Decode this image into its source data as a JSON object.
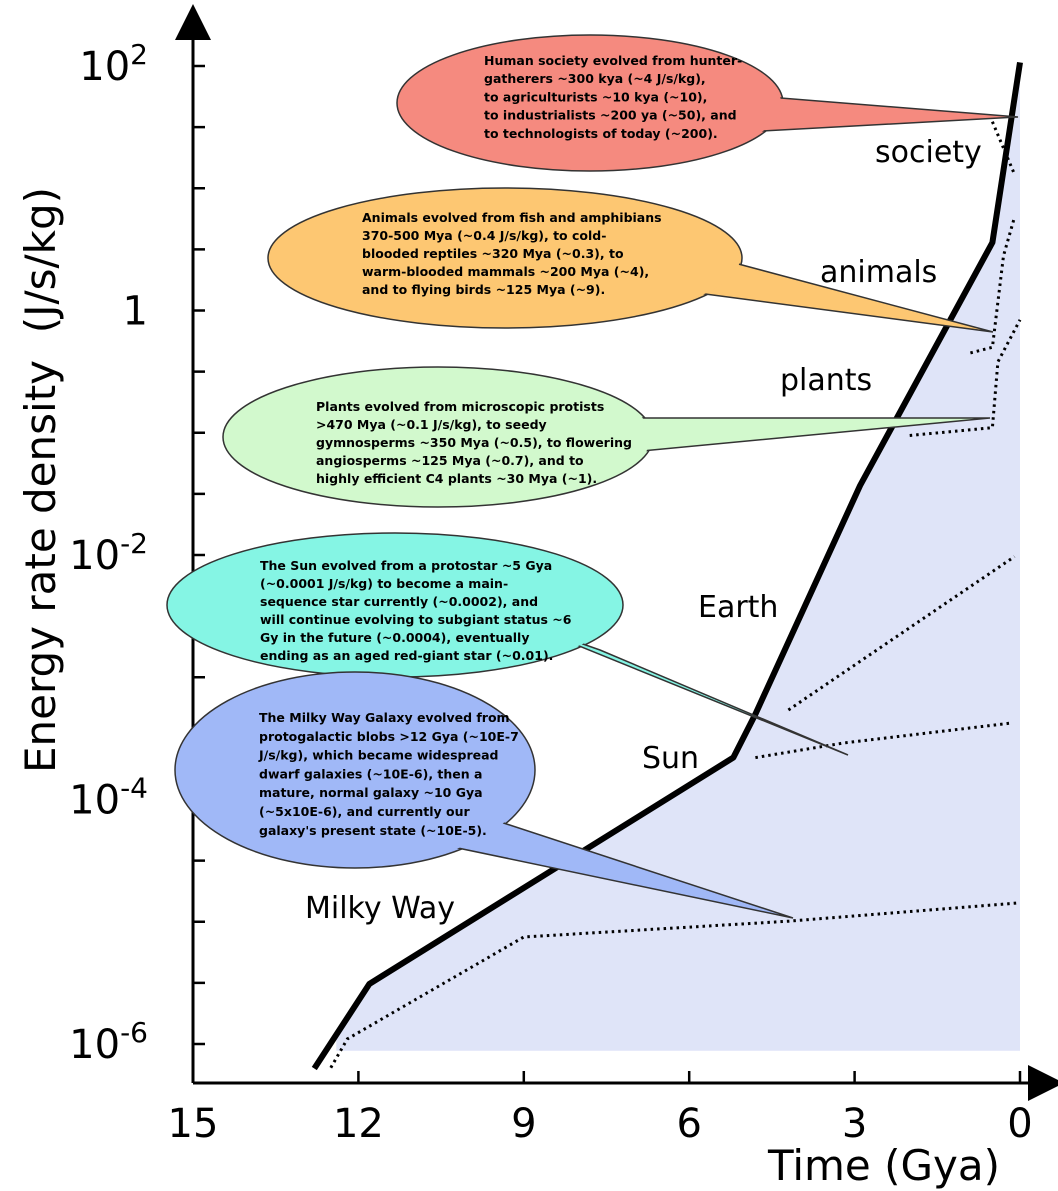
{
  "chart_data": {
    "type": "line",
    "xlabel": "Time (Gya)",
    "ylabel": "Energy rate density  (J/s/kg)",
    "x_scale": "linear, reversed",
    "y_scale": "log",
    "xlim": [
      15,
      0
    ],
    "ylim": [
      1e-06,
      100
    ],
    "x_ticks": [
      "15",
      "12",
      "9",
      "6",
      "3",
      "0"
    ],
    "y_ticks": [
      {
        "base": "10",
        "exp": "2",
        "value": 100
      },
      {
        "base": "1",
        "exp": "",
        "value": 1
      },
      {
        "base": "10",
        "exp": "-2",
        "value": 0.01
      },
      {
        "base": "10",
        "exp": "-4",
        "value": 0.0001
      },
      {
        "base": "10",
        "exp": "-6",
        "value": 1e-06
      }
    ],
    "main_curve": {
      "points": [
        [
          12.8,
          6.3e-07
        ],
        [
          11.8,
          3.1e-06
        ],
        [
          5.2,
          0.00022
        ],
        [
          4.8,
          0.0005
        ],
        [
          2.9,
          0.037
        ],
        [
          0.5,
          3.6
        ],
        [
          0.0,
          107
        ]
      ]
    },
    "branch_tracks": [
      {
        "points": [
          [
            12.5,
            6.4e-07
          ],
          [
            12.2,
            1.1e-06
          ],
          [
            9.0,
            7.5e-06
          ],
          [
            4.2,
            1.01e-05
          ],
          [
            0.0,
            1.43e-05
          ]
        ]
      },
      {
        "points": [
          [
            4.8,
            0.00022
          ],
          [
            3.2,
            0.00029
          ],
          [
            0.2,
            0.00042
          ]
        ]
      },
      {
        "points": [
          [
            4.2,
            0.00054
          ],
          [
            0.1,
            0.0097
          ]
        ]
      },
      {
        "points": [
          [
            2.0,
            0.095
          ],
          [
            0.5,
            0.11
          ],
          [
            0.4,
            0.38
          ],
          [
            0.0,
            0.84
          ]
        ]
      },
      {
        "points": [
          [
            0.9,
            0.45
          ],
          [
            0.5,
            0.5
          ],
          [
            0.3,
            2.8
          ],
          [
            0.1,
            5.8
          ]
        ]
      },
      {
        "points": [
          [
            0.5,
            35
          ],
          [
            0.1,
            13
          ]
        ]
      }
    ],
    "labels": [
      {
        "text": "society"
      },
      {
        "text": "animals"
      },
      {
        "text": "plants"
      },
      {
        "text": "Earth"
      },
      {
        "text": "Sun"
      },
      {
        "text": "Milky Way"
      }
    ],
    "annotations": [
      {
        "color": "#f58a7f",
        "lines": [
          "Human society evolved from hunter-",
          "gatherers ~300 kya (~4 J/s/kg),",
          "to agriculturists ~10 kya (~10),",
          "to industrialists ~200 ya (~50), and",
          "to technologists of today (~200)."
        ]
      },
      {
        "color": "#fdc772",
        "lines": [
          "Animals evolved from fish and amphibians",
          "370-500 Mya (~0.4 J/s/kg), to cold-",
          "blooded reptiles ~320 Mya (~0.3), to",
          "warm-blooded mammals ~200 Mya (~4),",
          "and to flying birds ~125 Mya (~9)."
        ]
      },
      {
        "color": "#d2f9cd",
        "lines": [
          "Plants evolved from microscopic protists",
          ">470 Mya (~0.1 J/s/kg), to seedy",
          "gymnosperms ~350 Mya (~0.5), to flowering",
          "angiosperms ~125 Mya (~0.7), and to",
          "highly efficient C4 plants ~30 Mya (~1)."
        ]
      },
      {
        "color": "#85f5e4",
        "lines": [
          "The Sun evolved from a protostar ~5 Gya",
          "(~0.0001 J/s/kg) to become a main-",
          "sequence star currently (~0.0002), and",
          "will continue evolving to subgiant status ~6",
          "Gy in the future (~0.0004), eventually",
          "ending as an aged red-giant star (~0.01)."
        ]
      },
      {
        "color": "#a0b8f7",
        "lines": [
          "The Milky Way Galaxy evolved from",
          "protogalactic blobs >12 Gya (~10E-7",
          "J/s/kg), which became widespread",
          "dwarf galaxies (~10E-6), then a",
          "mature, normal galaxy ~10 Gya",
          "(~5x10E-6), and currently our",
          "galaxy's present state (~10E-5)."
        ]
      }
    ],
    "colors": {
      "shaded_region": "#dfe4f8",
      "main_curve": "#000000",
      "tracks": "#000000"
    }
  }
}
